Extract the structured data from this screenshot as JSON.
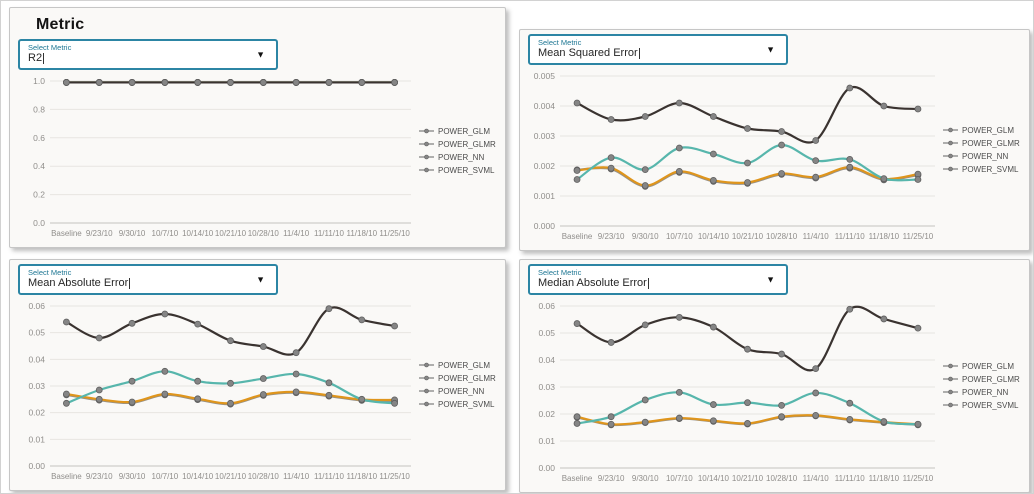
{
  "page": {
    "title": "Metric"
  },
  "controls": {
    "select_label": "Select Metric"
  },
  "legend_items": [
    "POWER_GLM",
    "POWER_GLMR",
    "POWER_NN",
    "POWER_SVML"
  ],
  "colors": {
    "accent_border": "#2c85a4",
    "select_label_text": "#1d7693",
    "power_glm": "#3a3330",
    "power_glmr": "#df951c",
    "power_nn": "#57b6ac",
    "power_svml": "#969188",
    "marker": "#858585",
    "marker_edge": "#5f5f5f",
    "grid": "#e7e5e2",
    "axis_line": "#c4c2bf",
    "axis_text": "#908e8b"
  },
  "chart_data": [
    {
      "type": "line",
      "metric": "R2",
      "title": "R2",
      "legend_position": "right",
      "grid": true,
      "categories": [
        "Baseline",
        "9/23/10",
        "9/30/10",
        "10/7/10",
        "10/14/10",
        "10/21/10",
        "10/28/10",
        "11/4/10",
        "11/11/10",
        "11/18/10",
        "11/25/10"
      ],
      "ylim": [
        0,
        1.0
      ],
      "y_tick_values": [
        0,
        0.2,
        0.4,
        0.6,
        0.8,
        1.0
      ],
      "y_tick_labels": [
        "0.0",
        "0.2",
        "0.4",
        "0.6",
        "0.8",
        "1.0"
      ],
      "z_order": [
        1,
        2,
        3,
        0
      ],
      "series": [
        {
          "name": "POWER_GLM",
          "color": "#3a3330",
          "values": [
            0.99,
            0.99,
            0.99,
            0.99,
            0.99,
            0.99,
            0.99,
            0.99,
            0.99,
            0.99,
            0.99
          ]
        },
        {
          "name": "POWER_GLMR",
          "color": "#df951c",
          "values": [
            0.99,
            0.99,
            0.99,
            0.99,
            0.99,
            0.99,
            0.99,
            0.99,
            0.99,
            0.99,
            0.99
          ]
        },
        {
          "name": "POWER_NN",
          "color": "#57b6ac",
          "values": [
            0.99,
            0.99,
            0.99,
            0.99,
            0.99,
            0.99,
            0.99,
            0.99,
            0.99,
            0.99,
            0.99
          ]
        },
        {
          "name": "POWER_SVML",
          "color": "#969188",
          "values": [
            0.99,
            0.99,
            0.99,
            0.99,
            0.99,
            0.99,
            0.99,
            0.99,
            0.99,
            0.99,
            0.99
          ]
        }
      ]
    },
    {
      "type": "line",
      "metric": "Mean Squared Error",
      "title": "Mean Squared Error",
      "legend_position": "right",
      "grid": true,
      "categories": [
        "Baseline",
        "9/23/10",
        "9/30/10",
        "10/7/10",
        "10/14/10",
        "10/21/10",
        "10/28/10",
        "11/4/10",
        "11/11/10",
        "11/18/10",
        "11/25/10"
      ],
      "ylim": [
        0,
        0.005
      ],
      "y_tick_values": [
        0,
        0.001,
        0.002,
        0.003,
        0.004,
        0.005
      ],
      "y_tick_labels": [
        "0.000",
        "0.001",
        "0.002",
        "0.003",
        "0.004",
        "0.005"
      ],
      "z_order": [
        0,
        3,
        1,
        2
      ],
      "series": [
        {
          "name": "POWER_GLM",
          "color": "#3a3330",
          "values": [
            0.0041,
            0.00355,
            0.00365,
            0.0041,
            0.00365,
            0.00325,
            0.00315,
            0.00285,
            0.0046,
            0.004,
            0.0039
          ]
        },
        {
          "name": "POWER_GLMR",
          "color": "#df951c",
          "values": [
            0.00185,
            0.00193,
            0.00135,
            0.00182,
            0.00152,
            0.00145,
            0.00175,
            0.00163,
            0.00196,
            0.00157,
            0.00173
          ]
        },
        {
          "name": "POWER_NN",
          "color": "#57b6ac",
          "values": [
            0.00155,
            0.00228,
            0.00188,
            0.0026,
            0.0024,
            0.0021,
            0.0027,
            0.00218,
            0.00222,
            0.00158,
            0.00155
          ]
        },
        {
          "name": "POWER_SVML",
          "color": "#969188",
          "values": [
            0.00187,
            0.0019,
            0.00132,
            0.00179,
            0.00149,
            0.00142,
            0.00172,
            0.0016,
            0.00193,
            0.00154,
            0.0017
          ]
        }
      ]
    },
    {
      "type": "line",
      "metric": "Mean Absolute Error",
      "title": "Mean Absolute Error",
      "legend_position": "right",
      "grid": true,
      "categories": [
        "Baseline",
        "9/23/10",
        "9/30/10",
        "10/7/10",
        "10/14/10",
        "10/21/10",
        "10/28/10",
        "11/4/10",
        "11/11/10",
        "11/18/10",
        "11/25/10"
      ],
      "ylim": [
        0,
        0.06
      ],
      "y_tick_values": [
        0,
        0.01,
        0.02,
        0.03,
        0.04,
        0.05,
        0.06
      ],
      "y_tick_labels": [
        "0.00",
        "0.01",
        "0.02",
        "0.03",
        "0.04",
        "0.05",
        "0.06"
      ],
      "z_order": [
        0,
        3,
        1,
        2
      ],
      "series": [
        {
          "name": "POWER_GLM",
          "color": "#3a3330",
          "values": [
            0.054,
            0.048,
            0.0535,
            0.057,
            0.0532,
            0.047,
            0.0448,
            0.0425,
            0.059,
            0.0548,
            0.0525
          ]
        },
        {
          "name": "POWER_GLMR",
          "color": "#df951c",
          "values": [
            0.027,
            0.025,
            0.024,
            0.027,
            0.0252,
            0.0235,
            0.0268,
            0.0278,
            0.0265,
            0.0249,
            0.0248
          ]
        },
        {
          "name": "POWER_NN",
          "color": "#57b6ac",
          "values": [
            0.0235,
            0.0285,
            0.0318,
            0.0355,
            0.0318,
            0.031,
            0.0328,
            0.0345,
            0.0312,
            0.025,
            0.0235
          ]
        },
        {
          "name": "POWER_SVML",
          "color": "#969188",
          "values": [
            0.0267,
            0.0247,
            0.0237,
            0.0267,
            0.0249,
            0.0232,
            0.0265,
            0.0275,
            0.0262,
            0.0246,
            0.0242
          ]
        }
      ]
    },
    {
      "type": "line",
      "metric": "Median Absolute Error",
      "title": "Median Absolute Error",
      "legend_position": "right",
      "grid": true,
      "categories": [
        "Baseline",
        "9/23/10",
        "9/30/10",
        "10/7/10",
        "10/14/10",
        "10/21/10",
        "10/28/10",
        "11/4/10",
        "11/11/10",
        "11/18/10",
        "11/25/10"
      ],
      "ylim": [
        0,
        0.06
      ],
      "y_tick_values": [
        0,
        0.01,
        0.02,
        0.03,
        0.04,
        0.05,
        0.06
      ],
      "y_tick_labels": [
        "0.00",
        "0.01",
        "0.02",
        "0.03",
        "0.04",
        "0.05",
        "0.06"
      ],
      "z_order": [
        0,
        3,
        1,
        2
      ],
      "series": [
        {
          "name": "POWER_GLM",
          "color": "#3a3330",
          "values": [
            0.0535,
            0.0465,
            0.053,
            0.0558,
            0.0522,
            0.044,
            0.0422,
            0.0368,
            0.0588,
            0.0552,
            0.0518
          ]
        },
        {
          "name": "POWER_GLMR",
          "color": "#df951c",
          "values": [
            0.019,
            0.0162,
            0.017,
            0.0185,
            0.0175,
            0.0165,
            0.019,
            0.0195,
            0.018,
            0.017,
            0.0162
          ]
        },
        {
          "name": "POWER_NN",
          "color": "#57b6ac",
          "values": [
            0.0165,
            0.019,
            0.0252,
            0.028,
            0.0235,
            0.0242,
            0.0232,
            0.0278,
            0.024,
            0.0172,
            0.0162
          ]
        },
        {
          "name": "POWER_SVML",
          "color": "#969188",
          "values": [
            0.0188,
            0.016,
            0.0168,
            0.0183,
            0.0173,
            0.0163,
            0.0188,
            0.0193,
            0.0178,
            0.0168,
            0.016
          ]
        }
      ]
    }
  ]
}
